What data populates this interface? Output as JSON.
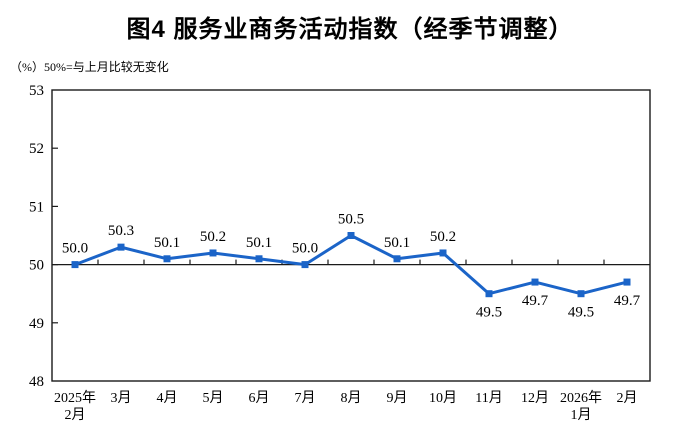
{
  "chart_data": {
    "type": "line",
    "title": "图4 服务业商务活动指数（经季节调整）",
    "unit_note": "（%）50%=与上月比较无变化",
    "xlabel": "",
    "ylabel": "",
    "categories": [
      [
        "2025年",
        "2月"
      ],
      [
        "3月"
      ],
      [
        "4月"
      ],
      [
        "5月"
      ],
      [
        "6月"
      ],
      [
        "7月"
      ],
      [
        "8月"
      ],
      [
        "9月"
      ],
      [
        "10月"
      ],
      [
        "11月"
      ],
      [
        "12月"
      ],
      [
        "2026年",
        "1月"
      ],
      [
        "2月"
      ]
    ],
    "series": [
      {
        "name": "服务业商务活动指数",
        "values": [
          50.0,
          50.3,
          50.1,
          50.2,
          50.1,
          50.0,
          50.5,
          50.1,
          50.2,
          49.5,
          49.7,
          49.5,
          49.7
        ],
        "labels": [
          "50.0",
          "50.3",
          "50.1",
          "50.2",
          "50.1",
          "50.0",
          "50.5",
          "50.1",
          "50.2",
          "49.5",
          "49.7",
          "49.5",
          "49.7"
        ]
      }
    ],
    "ylim": [
      48,
      53
    ],
    "yticks": [
      48,
      49,
      50,
      51,
      52,
      53
    ],
    "reference_line": 50,
    "grid": false,
    "legend": false,
    "line_color": "#1B64C8",
    "axis_color": "#1a1a1a",
    "marker": "square"
  }
}
